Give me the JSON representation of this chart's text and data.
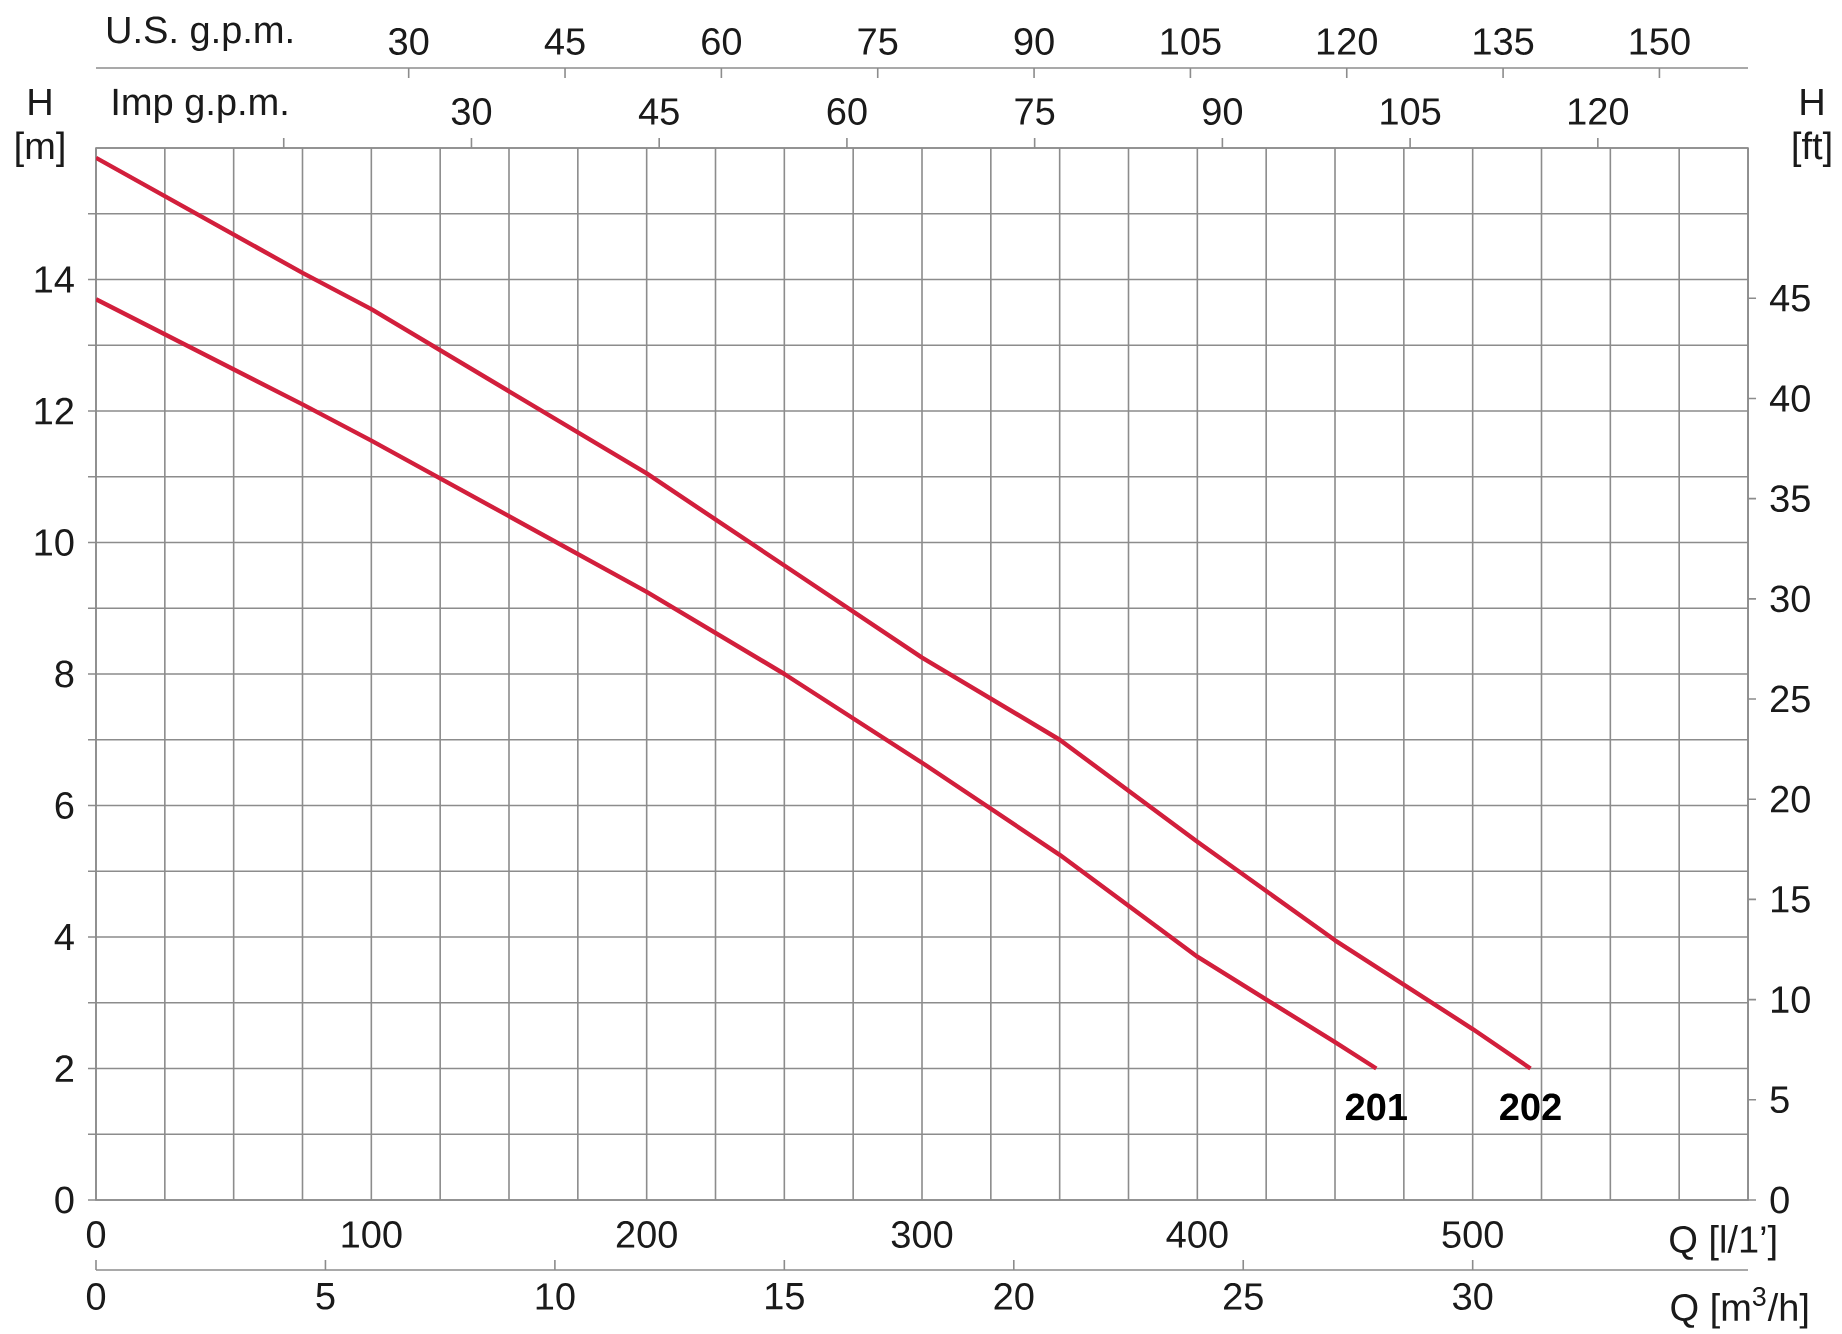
{
  "chart_data": [
    {
      "type": "line",
      "xlabel": "Q [l/1’]",
      "x2label": "U.S. g.p.m.",
      "ylabel": "H [m]",
      "y2label": "H [ft]",
      "xlim": [
        0,
        600
      ],
      "ylim": [
        0,
        16
      ],
      "xticks": [
        0,
        {
          "value": 25,
          "label": null
        },
        {
          "value": 50,
          "label": null
        },
        {
          "value": 75,
          "label": null
        },
        100,
        {
          "value": 125,
          "label": null
        },
        {
          "value": 150,
          "label": null
        },
        {
          "value": 175,
          "label": null
        },
        200,
        {
          "value": 225,
          "label": null
        },
        {
          "value": 250,
          "label": null
        },
        {
          "value": 275,
          "label": null
        },
        300,
        {
          "value": 325,
          "label": null
        },
        {
          "value": 350,
          "label": null
        },
        {
          "value": 375,
          "label": null
        },
        400,
        {
          "value": 425,
          "label": null
        },
        {
          "value": 450,
          "label": null
        },
        {
          "value": 475,
          "label": null
        },
        500,
        {
          "value": 525,
          "label": null
        },
        {
          "value": 550,
          "label": null
        },
        {
          "value": 575,
          "label": null
        }
      ],
      "yticks": [
        0,
        {
          "value": 1,
          "label": null
        },
        2,
        {
          "value": 3,
          "label": null
        },
        4,
        {
          "value": 5,
          "label": null
        },
        6,
        {
          "value": 7,
          "label": null
        },
        8,
        {
          "value": 9,
          "label": null
        },
        10,
        {
          "value": 11,
          "label": null
        },
        12,
        {
          "value": 13,
          "label": null
        },
        14,
        {
          "value": 15,
          "label": null
        }
      ],
      "x2lim": [
        0,
        158.5
      ],
      "x2ticks": [
        30,
        45,
        60,
        75,
        90,
        105,
        120,
        135,
        150
      ],
      "y2lim": [
        0,
        52.5
      ],
      "y2ticks": [
        0,
        5,
        10,
        15,
        20,
        25,
        30,
        35,
        40,
        45
      ],
      "grid": true,
      "series": [
        {
          "name": "201",
          "color": "#d21f3c",
          "x": [
            0,
            75,
            100,
            150,
            200,
            250,
            300,
            350,
            400,
            450,
            465
          ],
          "values": [
            13.7,
            12.1,
            11.55,
            10.4,
            9.25,
            8.0,
            6.65,
            5.25,
            3.7,
            2.4,
            2.0
          ]
        },
        {
          "name": "202",
          "color": "#d21f3c",
          "x": [
            0,
            75,
            100,
            150,
            200,
            250,
            300,
            350,
            400,
            450,
            500,
            521
          ],
          "values": [
            15.85,
            14.1,
            13.55,
            12.3,
            11.05,
            9.65,
            8.25,
            7.0,
            5.45,
            3.95,
            2.6,
            2.0
          ]
        }
      ]
    },
    {
      "type": "line",
      "xlabel": "Q [m$^{3}$/h]",
      "x2label": "Imp g.p.m.",
      "xlim": [
        0,
        36
      ],
      "xticks": [
        0,
        5,
        10,
        15,
        20,
        25,
        30
      ],
      "x2lim": [
        0,
        132
      ],
      "x2ticks": [
        {
          "value": 15,
          "label": null
        },
        30,
        45,
        60,
        75,
        90,
        105,
        120
      ],
      "ylim": [
        0,
        16
      ],
      "tick_labels": "x"
    }
  ]
}
